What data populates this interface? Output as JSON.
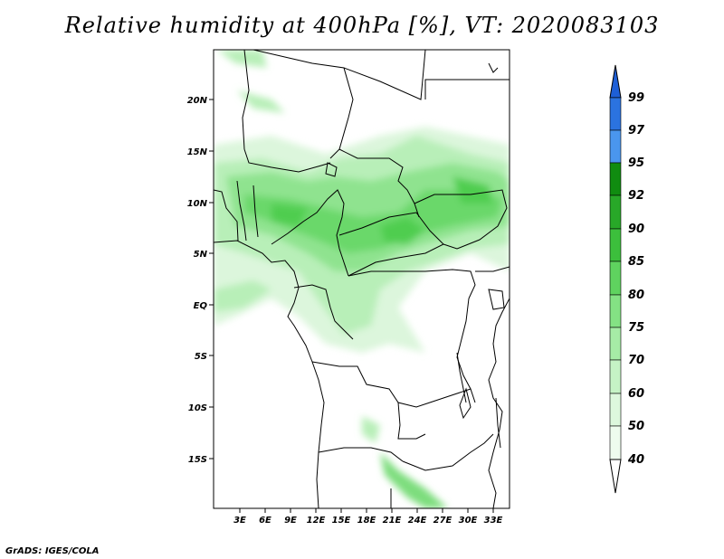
{
  "title": "Relative humidity at 400hPa [%], VT: 2020083103",
  "credit": "GrADS: IGES/COLA",
  "map": {
    "lon_range": [
      0,
      34
    ],
    "lat_range": [
      -20,
      25
    ],
    "lat_ticks": [
      "20N",
      "15N",
      "10N",
      "5N",
      "EQ",
      "5S",
      "10S",
      "15S"
    ],
    "lat_values": [
      20,
      15,
      10,
      5,
      0,
      -5,
      -10,
      -15
    ],
    "lon_ticks": [
      "3E",
      "6E",
      "9E",
      "12E",
      "15E",
      "18E",
      "21E",
      "24E",
      "27E",
      "30E",
      "33E"
    ],
    "lon_values": [
      3,
      6,
      9,
      12,
      15,
      18,
      21,
      24,
      27,
      30,
      33
    ]
  },
  "colorbar": {
    "levels": [
      "99",
      "97",
      "95",
      "92",
      "90",
      "85",
      "80",
      "75",
      "70",
      "60",
      "50",
      "40"
    ],
    "colors": {
      "top_arrow": "#1e5fd6",
      "band_97_99": "#2b73e0",
      "band_95_97": "#4a96ee",
      "band_92_95": "#108c10",
      "band_90_92": "#28a828",
      "band_85_90": "#3cbf3c",
      "band_80_85": "#5fd35f",
      "band_75_80": "#84e284",
      "band_70_75": "#a6eca6",
      "band_60_70": "#c5f3c5",
      "band_50_60": "#ddf8dd",
      "band_40_50": "#eefcee",
      "bottom_arrow": "#ffffff"
    }
  }
}
